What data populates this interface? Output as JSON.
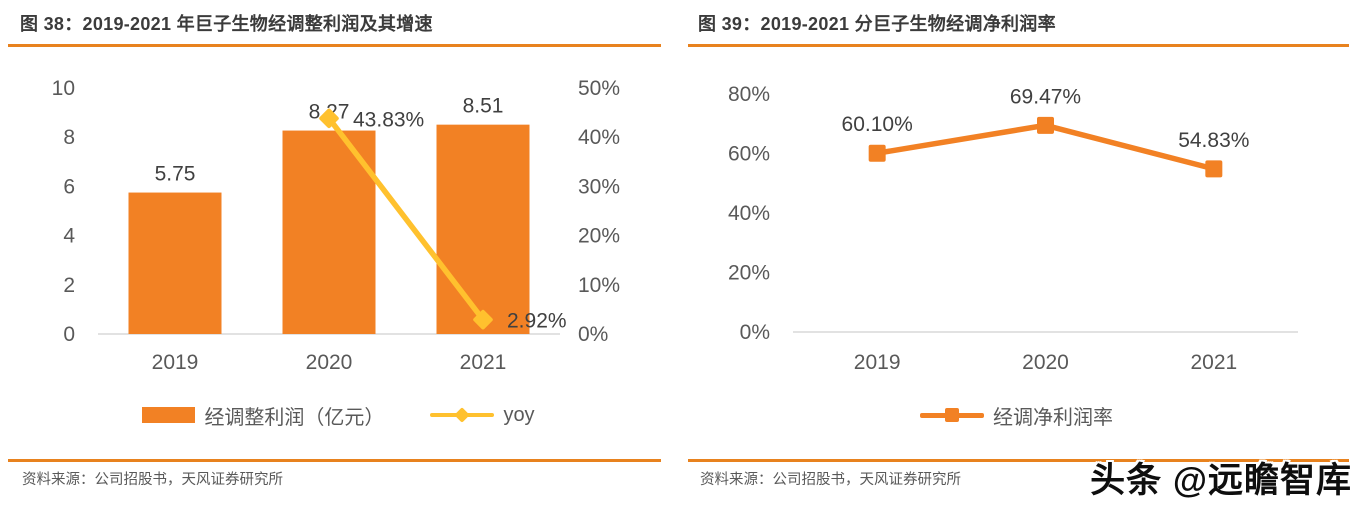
{
  "colors": {
    "bar-orange": "#F28124",
    "line-yellow": "#FFC12E",
    "rule-orange": "#E8821E",
    "title-text": "#3B3B3B",
    "axis-text": "#595959",
    "label-text": "#404040",
    "axis-line": "#D9D9D9",
    "source-text": "#595959",
    "watermark-text": "#0E0E0E"
  },
  "watermark": {
    "text": "头条 @远瞻智库"
  },
  "figures": [
    {
      "title": "图 38：2019-2021 年巨子生物经调整利润及其增速",
      "source": "资料来源：公司招股书，天风证券研究所",
      "legend": [
        {
          "label": "经调整利润（亿元）",
          "marker": "bar-swatch",
          "color": "#F28124"
        },
        {
          "label": "yoy",
          "marker": "diamond-line",
          "color": "#FFC12E"
        }
      ]
    },
    {
      "title": "图 39：2019-2021 分巨子生物经调净利润率",
      "source": "资料来源：公司招股书，天风证券研究所",
      "legend": [
        {
          "label": "经调净利润率",
          "marker": "square-line",
          "color": "#F28124"
        }
      ]
    }
  ],
  "chart_data": [
    {
      "type": "bar",
      "title": "图 38：2019-2021 年巨子生物经调整利润及其增速",
      "categories": [
        "2019",
        "2020",
        "2021"
      ],
      "series": [
        {
          "id": "adjusted-profit",
          "name": "经调整利润（亿元）",
          "type": "bar",
          "axis": "left",
          "values": [
            5.75,
            8.27,
            8.51
          ],
          "labels": [
            "5.75",
            "8.27",
            "8.51"
          ],
          "color": "#F28124"
        },
        {
          "id": "yoy",
          "name": "yoy",
          "type": "line",
          "axis": "right",
          "marker": "diamond",
          "label_pos": "right",
          "values": [
            null,
            43.83,
            2.92
          ],
          "labels": [
            null,
            "43.83%",
            "2.92%"
          ],
          "color": "#FFC12E"
        }
      ],
      "left_axis": {
        "min": 0,
        "max": 10,
        "tick_values": [
          0,
          2,
          4,
          6,
          8,
          10
        ],
        "tick_labels": [
          "0",
          "2",
          "4",
          "6",
          "8",
          "10"
        ]
      },
      "right_axis": {
        "min": 0,
        "max": 50,
        "tick_values": [
          0,
          10,
          20,
          30,
          40,
          50
        ],
        "tick_labels": [
          "0%",
          "10%",
          "20%",
          "30%",
          "40%",
          "50%"
        ]
      },
      "xlabel": "",
      "ylabel": "",
      "grid": false,
      "legend_position": "bottom"
    },
    {
      "type": "line",
      "title": "图 39：2019-2021 分巨子生物经调净利润率",
      "categories": [
        "2019",
        "2020",
        "2021"
      ],
      "series": [
        {
          "id": "net-margin",
          "name": "经调净利润率",
          "type": "line",
          "axis": "left",
          "marker": "square",
          "label_pos": "above",
          "values": [
            60.1,
            69.47,
            54.83
          ],
          "labels": [
            "60.10%",
            "69.47%",
            "54.83%"
          ],
          "color": "#F28124"
        }
      ],
      "left_axis": {
        "min": 0,
        "max": 80,
        "tick_values": [
          0,
          20,
          40,
          60,
          80
        ],
        "tick_labels": [
          "0%",
          "20%",
          "40%",
          "60%",
          "80%"
        ]
      },
      "xlabel": "",
      "ylabel": "",
      "grid": false,
      "legend_position": "bottom"
    }
  ]
}
